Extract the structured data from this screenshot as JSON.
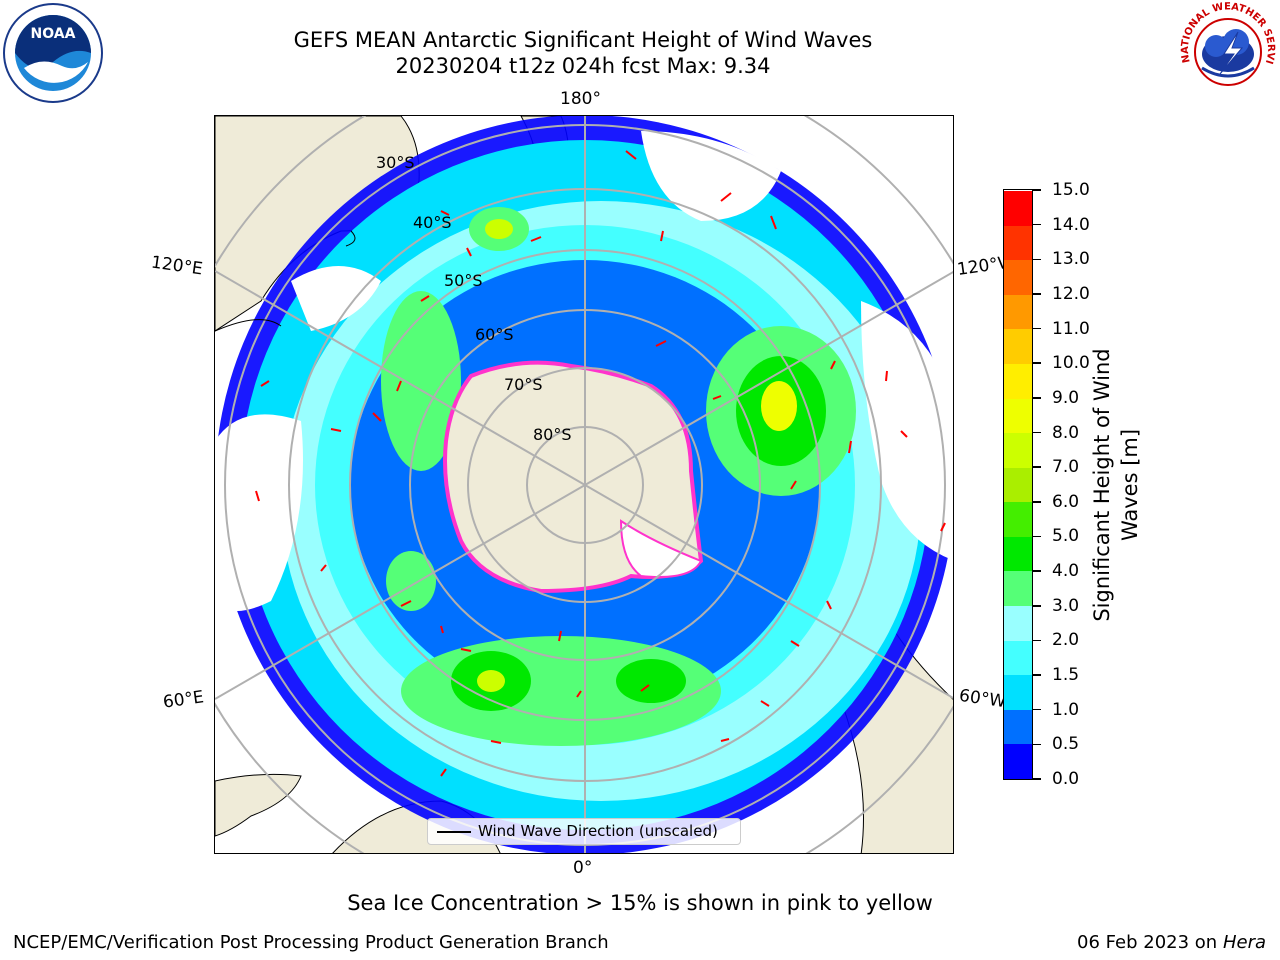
{
  "title": {
    "line1": "GEFS MEAN Antarctic Significant Height of Wind Waves",
    "line2": "20230204 t12z 024h fcst   Max: 9.34"
  },
  "map": {
    "projection": "south polar stereographic",
    "lon_labels": [
      "180°",
      "120°E",
      "120°W",
      "60°E",
      "60°W",
      "0°"
    ],
    "lat_labels": [
      "30°S",
      "40°S",
      "50°S",
      "60°S",
      "70°S",
      "80°S"
    ],
    "legend": "Wind Wave Direction (unscaled)",
    "land_color": "#efebd8",
    "arrow_color": "#ff0000",
    "sea_ice_color": "#ff33cc"
  },
  "colorbar": {
    "label_line1": "Significant Height of Wind",
    "label_line2": "Waves [m]",
    "ticks": [
      "0.0",
      "0.5",
      "1.0",
      "1.5",
      "2.0",
      "3.0",
      "4.0",
      "5.0",
      "6.0",
      "7.0",
      "8.0",
      "9.0",
      "10.0",
      "11.0",
      "12.0",
      "13.0",
      "14.0",
      "15.0"
    ],
    "colors": [
      "#0000ff",
      "#0070ff",
      "#00e0ff",
      "#44ffff",
      "#99ffff",
      "#55ff77",
      "#00e800",
      "#44ee00",
      "#aaee00",
      "#ccff00",
      "#eeff00",
      "#ffee00",
      "#ffcc00",
      "#ff9900",
      "#ff6600",
      "#ff3300",
      "#ff0000"
    ]
  },
  "footer": {
    "sea_ice_note": "Sea Ice Concentration > 15% is shown in pink to yellow",
    "branch": "NCEP/EMC/Verification Post Processing Product Generation Branch",
    "date": "06 Feb 2023 on",
    "machine": "Hera"
  },
  "logos": {
    "left": "NOAA",
    "right_text": "NATIONAL WEATHER SERVICE"
  }
}
